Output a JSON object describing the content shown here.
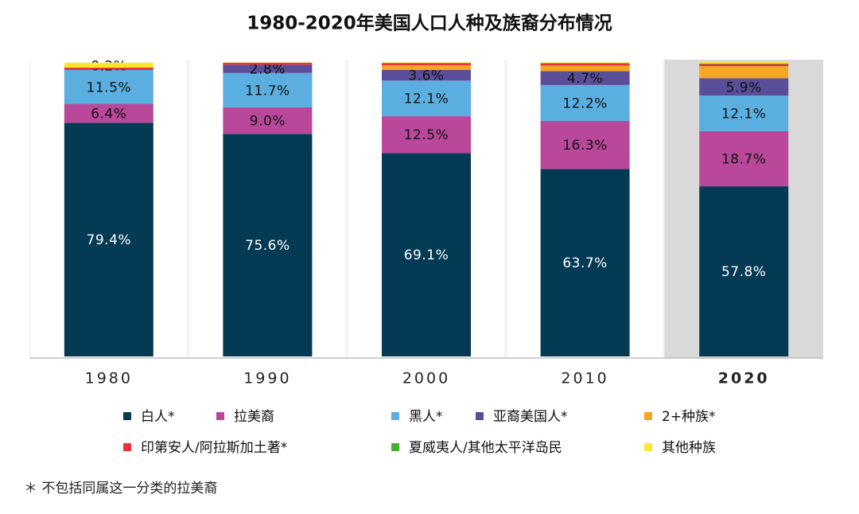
{
  "chart_data": {
    "type": "stacked-bar",
    "title": "1980-2020年美国人口人种及族裔分布情况",
    "categories": [
      "1980",
      "1990",
      "2000",
      "2010",
      "2020"
    ],
    "highlight_category_index": 4,
    "ylim": [
      0,
      100
    ],
    "series": [
      {
        "name": "白人*",
        "color": "#053a55",
        "values": [
          79.4,
          75.6,
          69.1,
          63.7,
          57.8
        ],
        "value_labels": [
          "79.4%",
          "75.6%",
          "69.1%",
          "63.7%",
          "57.8%"
        ]
      },
      {
        "name": "拉美裔",
        "color": "#b9479a",
        "values": [
          6.4,
          9.0,
          12.5,
          16.3,
          18.7
        ],
        "value_labels": [
          "6.4%",
          "9.0%",
          "12.5%",
          "16.3%",
          "18.7%"
        ]
      },
      {
        "name": "黑人*",
        "color": "#5aafe0",
        "values": [
          11.5,
          11.7,
          12.1,
          12.2,
          12.1
        ],
        "value_labels": [
          "11.5%",
          "11.7%",
          "12.1%",
          "12.2%",
          "12.1%"
        ]
      },
      {
        "name": "亚裔美国人*",
        "color": "#5a4d9a",
        "values": [
          0.2,
          2.8,
          3.6,
          4.7,
          5.9
        ],
        "value_labels": [
          "0.2%",
          "2.8%",
          "3.6%",
          "4.7%",
          "5.9%"
        ]
      },
      {
        "name": "2+种族*",
        "color": "#f5a623",
        "values": [
          0,
          0,
          1.6,
          1.9,
          4.1
        ]
      },
      {
        "name": "印第安人/阿拉斯加土著*",
        "color": "#e8323c",
        "values": [
          0.6,
          0.7,
          0.7,
          0.7,
          0.7
        ]
      },
      {
        "name": "夏威夷人/其他太平洋岛民",
        "color": "#43b02a",
        "values": [
          0,
          0,
          0.1,
          0.2,
          0.2
        ]
      },
      {
        "name": "其他种族",
        "color": "#ffe62e",
        "values": [
          1.7,
          0.1,
          0.2,
          0.2,
          0.5
        ]
      }
    ],
    "footnote": "＊ 不包括同属这一分类的拉美裔"
  }
}
